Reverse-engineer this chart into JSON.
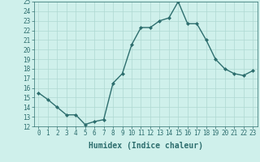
{
  "x": [
    0,
    1,
    2,
    3,
    4,
    5,
    6,
    7,
    8,
    9,
    10,
    11,
    12,
    13,
    14,
    15,
    16,
    17,
    18,
    19,
    20,
    21,
    22,
    23
  ],
  "y": [
    15.5,
    14.8,
    14.0,
    13.2,
    13.2,
    12.2,
    12.5,
    12.7,
    16.5,
    17.5,
    20.5,
    22.3,
    22.3,
    23.0,
    23.3,
    25.0,
    22.7,
    22.7,
    21.0,
    19.0,
    18.0,
    17.5,
    17.3,
    17.8
  ],
  "line_color": "#2d6e6e",
  "marker": "D",
  "marker_size": 2.0,
  "background_color": "#cff0eb",
  "grid_color": "#aed8d2",
  "xlabel": "Humidex (Indice chaleur)",
  "xlabel_fontsize": 7,
  "xlim": [
    -0.5,
    23.5
  ],
  "ylim": [
    12,
    25
  ],
  "yticks": [
    12,
    13,
    14,
    15,
    16,
    17,
    18,
    19,
    20,
    21,
    22,
    23,
    24,
    25
  ],
  "xticks": [
    0,
    1,
    2,
    3,
    4,
    5,
    6,
    7,
    8,
    9,
    10,
    11,
    12,
    13,
    14,
    15,
    16,
    17,
    18,
    19,
    20,
    21,
    22,
    23
  ],
  "tick_fontsize": 5.5,
  "linewidth": 1.0
}
